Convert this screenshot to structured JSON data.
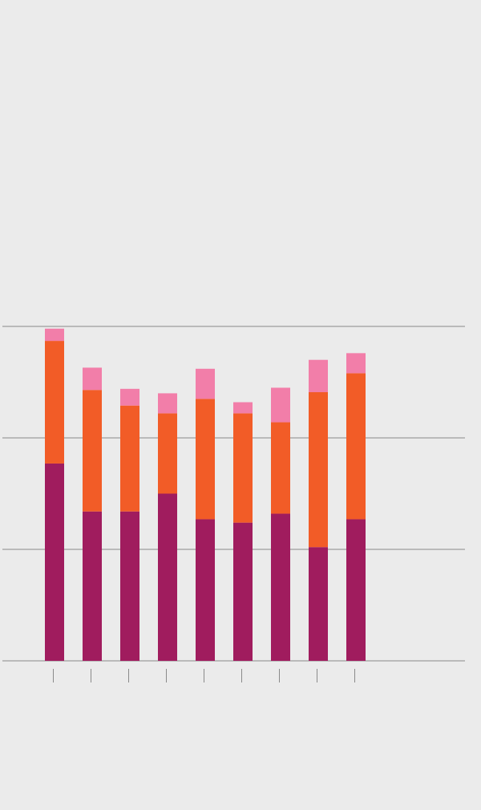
{
  "chart_data": {
    "type": "bar",
    "stacked": true,
    "categories": [
      null,
      null,
      null,
      null,
      null,
      null,
      null,
      null,
      null
    ],
    "series": [
      {
        "color": "#a01c5e",
        "values": [
          1.77,
          1.34,
          1.34,
          1.5,
          1.27,
          1.24,
          1.32,
          1.02,
          1.27
        ]
      },
      {
        "color": "#f25c27",
        "values": [
          1.1,
          1.09,
          0.95,
          0.72,
          1.08,
          0.98,
          0.82,
          1.39,
          1.31
        ]
      },
      {
        "color": "#f27ea9",
        "values": [
          0.11,
          0.2,
          0.15,
          0.18,
          0.27,
          0.1,
          0.31,
          0.29,
          0.18
        ]
      }
    ],
    "ylim": [
      0,
      3
    ],
    "yticks": [
      0,
      1,
      2,
      3
    ],
    "grid": true
  }
}
